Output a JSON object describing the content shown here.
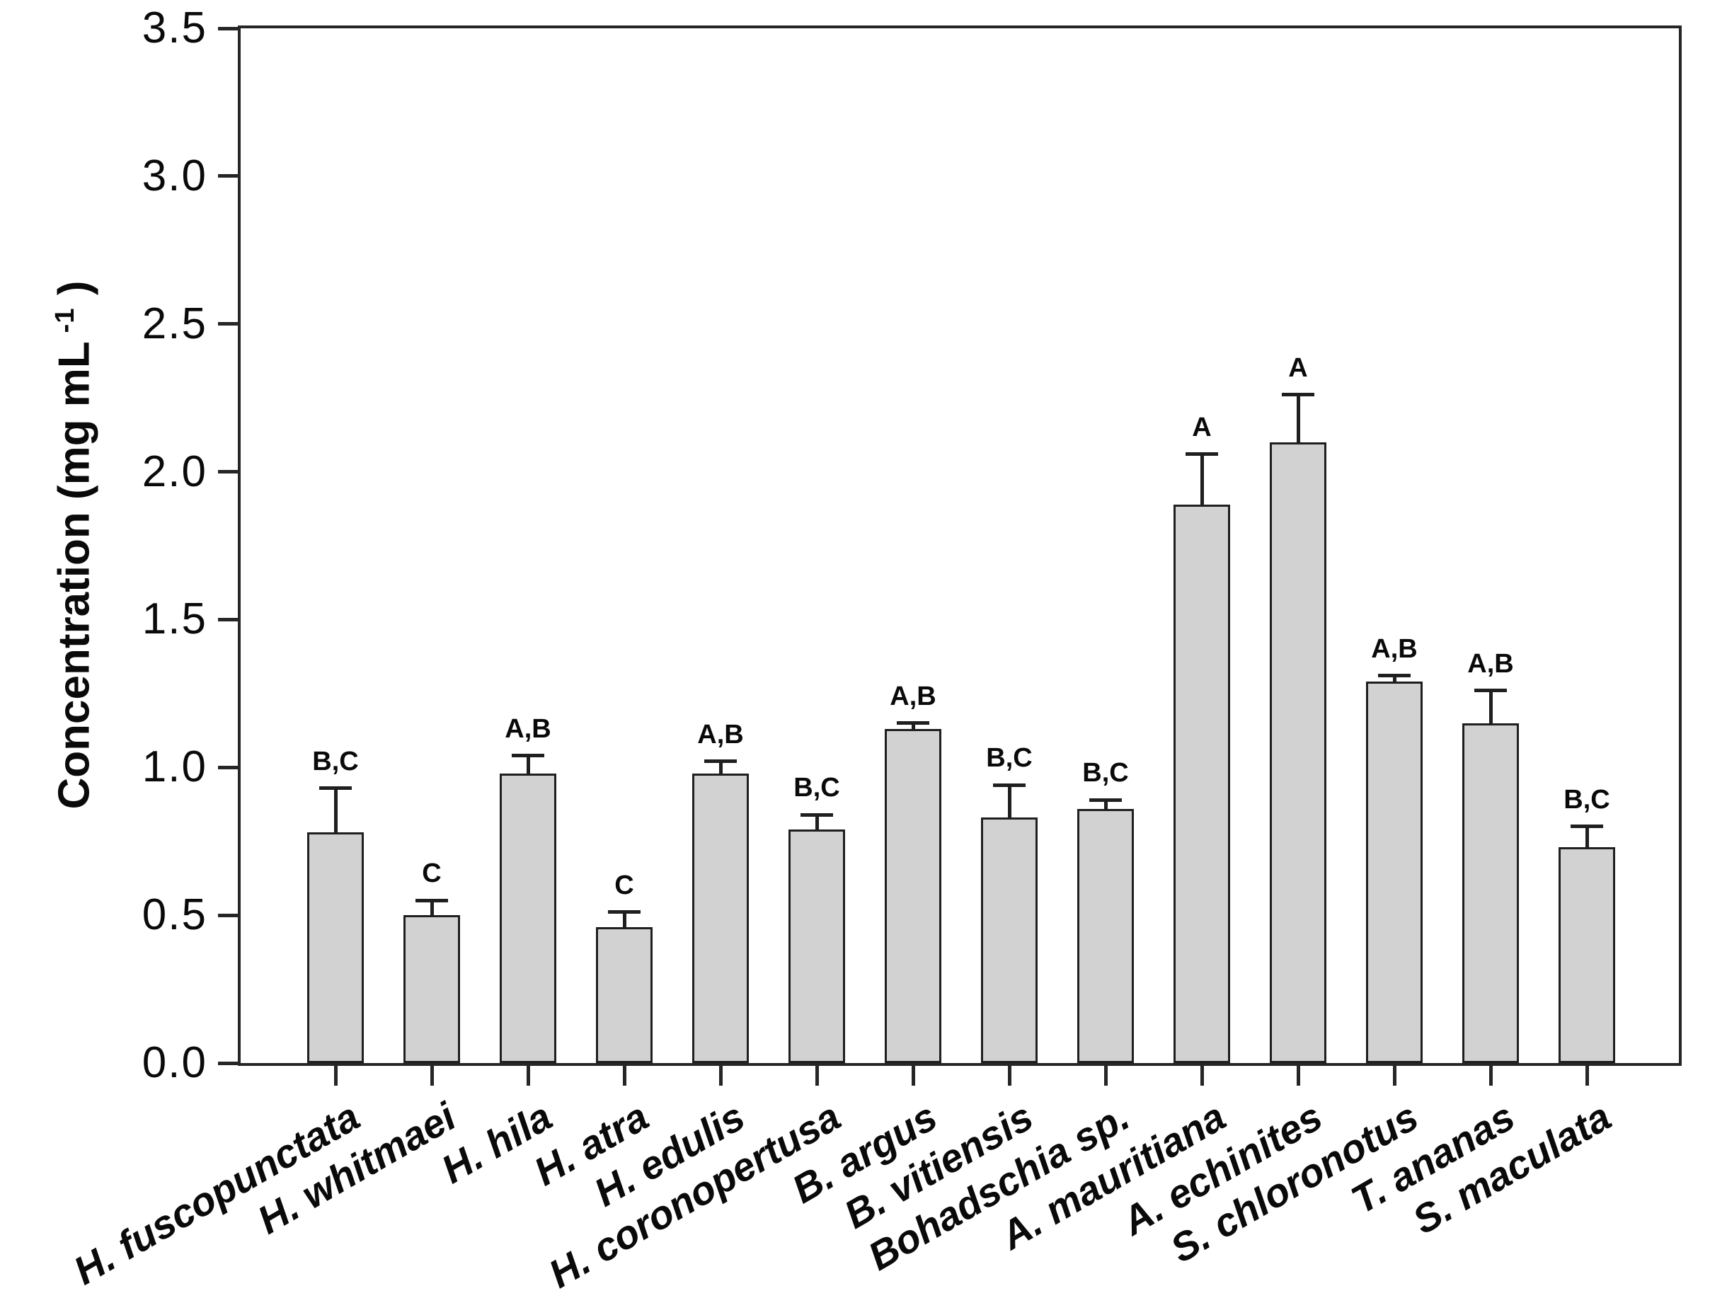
{
  "chart_data": {
    "type": "bar",
    "title": "",
    "xlabel": "",
    "ylabel": "Concentration (mg mL -1 )",
    "ylabel_text": "Concentration (mg mL",
    "ylabel_sup": "-1",
    "ylabel_suffix": " )",
    "ylim": [
      0,
      3.5
    ],
    "ytick_step": 0.5,
    "yticks": [
      "3.5",
      "3.0",
      "2.5",
      "2.0",
      "1.5",
      "1.0",
      "0.5",
      "0.0"
    ],
    "grid": false,
    "legend": "none",
    "bar_fill_color": "#d2d2d2",
    "bar_border_color": "#1f1f1f",
    "categories": [
      "H. fuscopunctata",
      "H. whitmaei",
      "H. hila",
      "H. atra",
      "H. edulis",
      "H. coronopertusa",
      "B. argus",
      "B. vitiensis",
      "Bohadschia sp.",
      "A. mauritiana",
      "A. echinites",
      "S. chloronotus",
      "T. ananas",
      "S. maculata"
    ],
    "series": [
      {
        "name": "Concentration (mg mL-1)",
        "values": [
          0.78,
          0.5,
          0.98,
          0.46,
          0.98,
          0.79,
          1.13,
          0.83,
          0.86,
          1.89,
          2.1,
          1.29,
          1.15,
          0.73
        ]
      }
    ],
    "values": [
      0.78,
      0.5,
      0.98,
      0.46,
      0.98,
      0.79,
      1.13,
      0.83,
      0.86,
      1.89,
      2.1,
      1.29,
      1.15,
      0.73
    ],
    "errors_plus": [
      0.15,
      0.05,
      0.06,
      0.05,
      0.04,
      0.05,
      0.02,
      0.11,
      0.03,
      0.17,
      0.16,
      0.02,
      0.11,
      0.07
    ],
    "sig_labels": [
      "B,C",
      "C",
      "A,B",
      "C",
      "A,B",
      "B,C",
      "A,B",
      "B,C",
      "B,C",
      "A",
      "A",
      "A,B",
      "A,B",
      "B,C"
    ]
  }
}
